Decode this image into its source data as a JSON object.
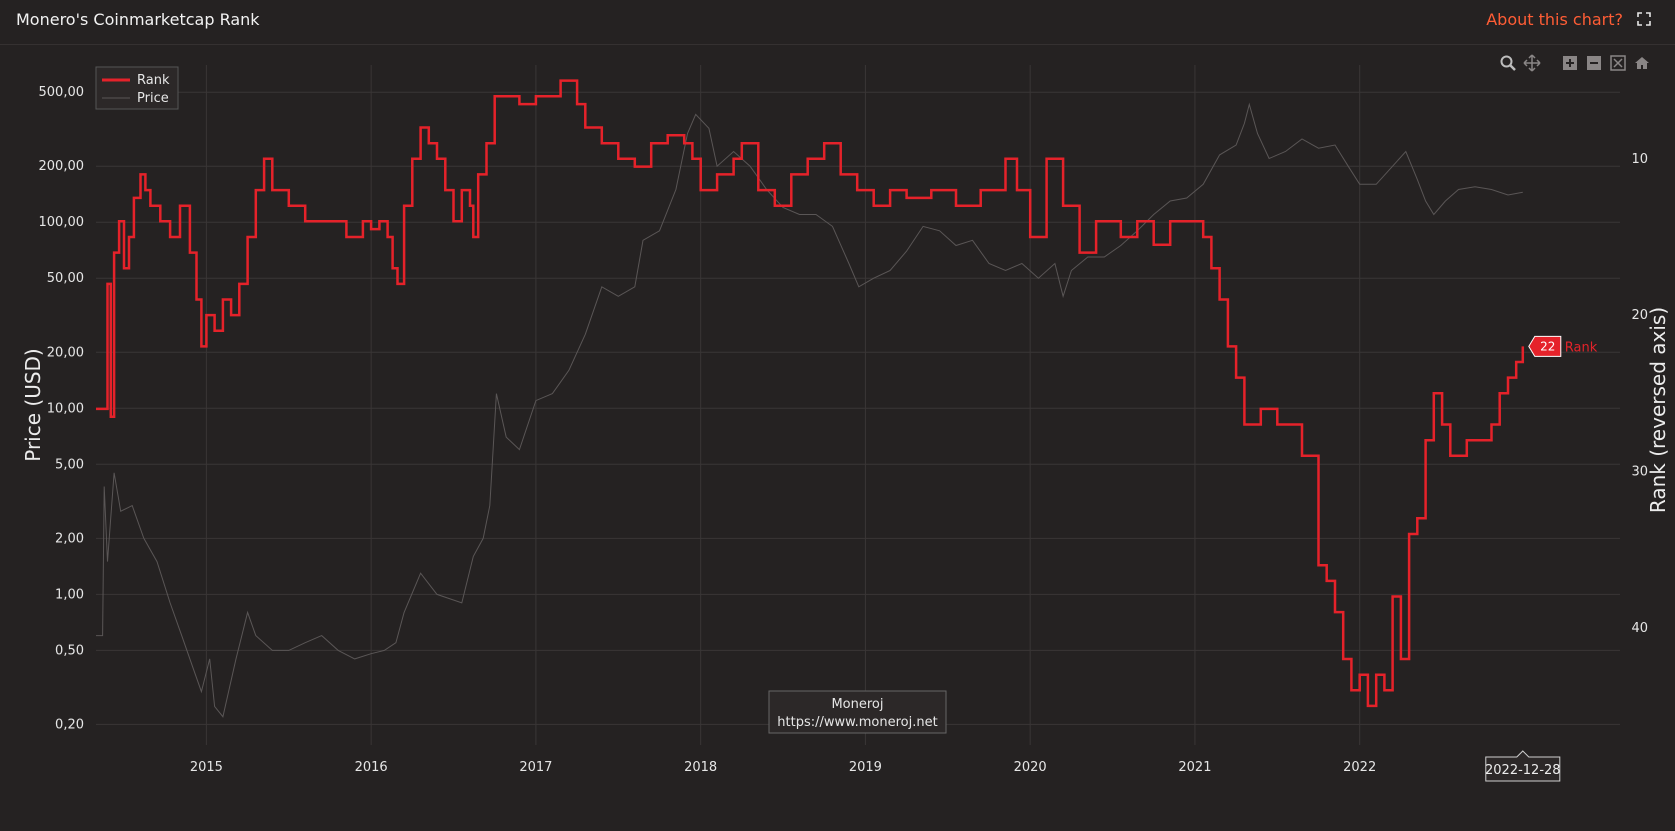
{
  "header": {
    "title": "Monero's Coinmarketcap Rank",
    "about_label": "About this chart?"
  },
  "icons": {
    "fullscreen": "fullscreen-icon",
    "zoom": "zoom-icon",
    "pan": "pan-icon",
    "zoom_in": "zoom-in-icon",
    "zoom_out": "zoom-out-icon",
    "autoscale": "autoscale-icon",
    "reset": "home-icon"
  },
  "colors": {
    "background": "#252222",
    "accent": "#ff5d35",
    "rank": "#e5222a",
    "price": "#5a5656",
    "grid": "#3a3636"
  },
  "watermark": {
    "line1": "Moneroj",
    "line2": "https://www.moneroj.net"
  },
  "hover": {
    "date_label": "2022-12-28",
    "rank_value": "22",
    "rank_label": "Rank"
  },
  "chart_data": {
    "type": "line",
    "title": "Monero's Coinmarketcap Rank",
    "xlabel": "",
    "y_left_label": "Price (USD)",
    "y_right_label": "Rank (reversed axis)",
    "y_left_scale": "log",
    "y_left_ticks": [
      "0,20",
      "0,50",
      "1,00",
      "2,00",
      "5,00",
      "10,00",
      "20,00",
      "50,00",
      "100,00",
      "200,00",
      "500,00"
    ],
    "y_left_tick_values": [
      0.2,
      0.5,
      1,
      2,
      5,
      10,
      20,
      50,
      100,
      200,
      500
    ],
    "y_right_ticks": [
      "10",
      "20",
      "30",
      "40"
    ],
    "y_right_tick_values": [
      10,
      20,
      30,
      40
    ],
    "y_right_range": [
      47.5,
      4
    ],
    "x_ticks": [
      "2015",
      "2016",
      "2017",
      "2018",
      "2019",
      "2020",
      "2021",
      "2022"
    ],
    "x_range": [
      2014.33,
      2023.58
    ],
    "legend": {
      "position": "top-left",
      "entries": [
        "Rank",
        "Price"
      ]
    },
    "grid": true,
    "series": [
      {
        "name": "Rank",
        "axis": "right",
        "color": "#e5222a",
        "points": [
          [
            2014.33,
            26
          ],
          [
            2014.38,
            26
          ],
          [
            2014.4,
            18
          ],
          [
            2014.42,
            26.5
          ],
          [
            2014.44,
            16
          ],
          [
            2014.47,
            14
          ],
          [
            2014.5,
            17
          ],
          [
            2014.53,
            15
          ],
          [
            2014.56,
            12.5
          ],
          [
            2014.6,
            11
          ],
          [
            2014.63,
            12
          ],
          [
            2014.66,
            13
          ],
          [
            2014.72,
            14
          ],
          [
            2014.78,
            15
          ],
          [
            2014.84,
            13
          ],
          [
            2014.9,
            16
          ],
          [
            2014.94,
            19
          ],
          [
            2014.97,
            22
          ],
          [
            2015.0,
            20
          ],
          [
            2015.05,
            21
          ],
          [
            2015.1,
            19
          ],
          [
            2015.15,
            20
          ],
          [
            2015.2,
            18
          ],
          [
            2015.25,
            15
          ],
          [
            2015.3,
            12
          ],
          [
            2015.35,
            10
          ],
          [
            2015.4,
            12
          ],
          [
            2015.5,
            13
          ],
          [
            2015.6,
            14
          ],
          [
            2015.75,
            14
          ],
          [
            2015.85,
            15
          ],
          [
            2015.95,
            14
          ],
          [
            2016.0,
            14.5
          ],
          [
            2016.05,
            14
          ],
          [
            2016.1,
            15
          ],
          [
            2016.13,
            17
          ],
          [
            2016.16,
            18
          ],
          [
            2016.2,
            13
          ],
          [
            2016.25,
            10
          ],
          [
            2016.3,
            8
          ],
          [
            2016.35,
            9
          ],
          [
            2016.4,
            10
          ],
          [
            2016.45,
            12
          ],
          [
            2016.5,
            14
          ],
          [
            2016.55,
            12
          ],
          [
            2016.6,
            13
          ],
          [
            2016.62,
            15
          ],
          [
            2016.65,
            11
          ],
          [
            2016.7,
            9
          ],
          [
            2016.75,
            6
          ],
          [
            2016.9,
            6.5
          ],
          [
            2017.0,
            6
          ],
          [
            2017.15,
            5
          ],
          [
            2017.25,
            6.5
          ],
          [
            2017.3,
            8
          ],
          [
            2017.4,
            9
          ],
          [
            2017.5,
            10
          ],
          [
            2017.6,
            10.5
          ],
          [
            2017.7,
            9
          ],
          [
            2017.8,
            8.5
          ],
          [
            2017.9,
            9
          ],
          [
            2017.95,
            10
          ],
          [
            2018.0,
            12
          ],
          [
            2018.1,
            11
          ],
          [
            2018.2,
            10
          ],
          [
            2018.25,
            9
          ],
          [
            2018.35,
            12
          ],
          [
            2018.45,
            13
          ],
          [
            2018.55,
            11
          ],
          [
            2018.65,
            10
          ],
          [
            2018.75,
            9
          ],
          [
            2018.85,
            11
          ],
          [
            2018.95,
            12
          ],
          [
            2019.05,
            13
          ],
          [
            2019.15,
            12
          ],
          [
            2019.25,
            12.5
          ],
          [
            2019.4,
            12
          ],
          [
            2019.55,
            13
          ],
          [
            2019.7,
            12
          ],
          [
            2019.85,
            10
          ],
          [
            2019.92,
            12
          ],
          [
            2020.0,
            15
          ],
          [
            2020.1,
            10
          ],
          [
            2020.2,
            13
          ],
          [
            2020.3,
            16
          ],
          [
            2020.4,
            14
          ],
          [
            2020.55,
            15
          ],
          [
            2020.65,
            14
          ],
          [
            2020.75,
            15.5
          ],
          [
            2020.85,
            14
          ],
          [
            2020.95,
            14
          ],
          [
            2021.05,
            15
          ],
          [
            2021.1,
            17
          ],
          [
            2021.15,
            19
          ],
          [
            2021.2,
            22
          ],
          [
            2021.25,
            24
          ],
          [
            2021.3,
            27
          ],
          [
            2021.4,
            26
          ],
          [
            2021.5,
            27
          ],
          [
            2021.6,
            27
          ],
          [
            2021.65,
            29
          ],
          [
            2021.75,
            36
          ],
          [
            2021.8,
            37
          ],
          [
            2021.85,
            39
          ],
          [
            2021.9,
            42
          ],
          [
            2021.95,
            44
          ],
          [
            2022.0,
            43
          ],
          [
            2022.05,
            45
          ],
          [
            2022.1,
            43
          ],
          [
            2022.15,
            44
          ],
          [
            2022.2,
            38
          ],
          [
            2022.25,
            42
          ],
          [
            2022.3,
            34
          ],
          [
            2022.35,
            33
          ],
          [
            2022.4,
            28
          ],
          [
            2022.45,
            25
          ],
          [
            2022.5,
            27
          ],
          [
            2022.55,
            29
          ],
          [
            2022.65,
            28
          ],
          [
            2022.75,
            28
          ],
          [
            2022.8,
            27
          ],
          [
            2022.85,
            25
          ],
          [
            2022.9,
            24
          ],
          [
            2022.95,
            23
          ],
          [
            2022.99,
            22
          ]
        ]
      },
      {
        "name": "Price",
        "axis": "left",
        "color": "#5a5656",
        "points": [
          [
            2014.33,
            0.6
          ],
          [
            2014.37,
            0.6
          ],
          [
            2014.38,
            3.8
          ],
          [
            2014.4,
            1.5
          ],
          [
            2014.44,
            4.5
          ],
          [
            2014.48,
            2.8
          ],
          [
            2014.55,
            3.0
          ],
          [
            2014.62,
            2.0
          ],
          [
            2014.7,
            1.5
          ],
          [
            2014.78,
            0.9
          ],
          [
            2014.85,
            0.6
          ],
          [
            2014.92,
            0.4
          ],
          [
            2014.97,
            0.3
          ],
          [
            2015.02,
            0.45
          ],
          [
            2015.05,
            0.25
          ],
          [
            2015.1,
            0.22
          ],
          [
            2015.18,
            0.45
          ],
          [
            2015.25,
            0.8
          ],
          [
            2015.3,
            0.6
          ],
          [
            2015.4,
            0.5
          ],
          [
            2015.5,
            0.5
          ],
          [
            2015.6,
            0.55
          ],
          [
            2015.7,
            0.6
          ],
          [
            2015.8,
            0.5
          ],
          [
            2015.9,
            0.45
          ],
          [
            2016.0,
            0.48
          ],
          [
            2016.08,
            0.5
          ],
          [
            2016.15,
            0.55
          ],
          [
            2016.2,
            0.8
          ],
          [
            2016.3,
            1.3
          ],
          [
            2016.4,
            1.0
          ],
          [
            2016.55,
            0.9
          ],
          [
            2016.62,
            1.6
          ],
          [
            2016.68,
            2.0
          ],
          [
            2016.72,
            3.0
          ],
          [
            2016.76,
            12
          ],
          [
            2016.82,
            7
          ],
          [
            2016.9,
            6
          ],
          [
            2017.0,
            11
          ],
          [
            2017.1,
            12
          ],
          [
            2017.2,
            16
          ],
          [
            2017.3,
            25
          ],
          [
            2017.4,
            45
          ],
          [
            2017.5,
            40
          ],
          [
            2017.6,
            45
          ],
          [
            2017.65,
            80
          ],
          [
            2017.75,
            90
          ],
          [
            2017.85,
            150
          ],
          [
            2017.92,
            300
          ],
          [
            2017.97,
            380
          ],
          [
            2018.05,
            320
          ],
          [
            2018.1,
            200
          ],
          [
            2018.2,
            240
          ],
          [
            2018.3,
            200
          ],
          [
            2018.4,
            150
          ],
          [
            2018.5,
            120
          ],
          [
            2018.6,
            110
          ],
          [
            2018.7,
            110
          ],
          [
            2018.8,
            95
          ],
          [
            2018.9,
            60
          ],
          [
            2018.96,
            45
          ],
          [
            2019.05,
            50
          ],
          [
            2019.15,
            55
          ],
          [
            2019.25,
            70
          ],
          [
            2019.35,
            95
          ],
          [
            2019.45,
            90
          ],
          [
            2019.55,
            75
          ],
          [
            2019.65,
            80
          ],
          [
            2019.75,
            60
          ],
          [
            2019.85,
            55
          ],
          [
            2019.95,
            60
          ],
          [
            2020.05,
            50
          ],
          [
            2020.15,
            60
          ],
          [
            2020.2,
            40
          ],
          [
            2020.25,
            55
          ],
          [
            2020.35,
            65
          ],
          [
            2020.45,
            65
          ],
          [
            2020.55,
            75
          ],
          [
            2020.65,
            90
          ],
          [
            2020.75,
            110
          ],
          [
            2020.85,
            130
          ],
          [
            2020.95,
            135
          ],
          [
            2021.05,
            160
          ],
          [
            2021.15,
            230
          ],
          [
            2021.25,
            260
          ],
          [
            2021.3,
            340
          ],
          [
            2021.33,
            430
          ],
          [
            2021.38,
            300
          ],
          [
            2021.45,
            220
          ],
          [
            2021.55,
            240
          ],
          [
            2021.65,
            280
          ],
          [
            2021.75,
            250
          ],
          [
            2021.85,
            260
          ],
          [
            2021.93,
            200
          ],
          [
            2022.0,
            160
          ],
          [
            2022.1,
            160
          ],
          [
            2022.2,
            200
          ],
          [
            2022.28,
            240
          ],
          [
            2022.35,
            170
          ],
          [
            2022.4,
            130
          ],
          [
            2022.45,
            110
          ],
          [
            2022.52,
            130
          ],
          [
            2022.6,
            150
          ],
          [
            2022.7,
            155
          ],
          [
            2022.8,
            150
          ],
          [
            2022.9,
            140
          ],
          [
            2022.99,
            145
          ]
        ]
      }
    ]
  }
}
